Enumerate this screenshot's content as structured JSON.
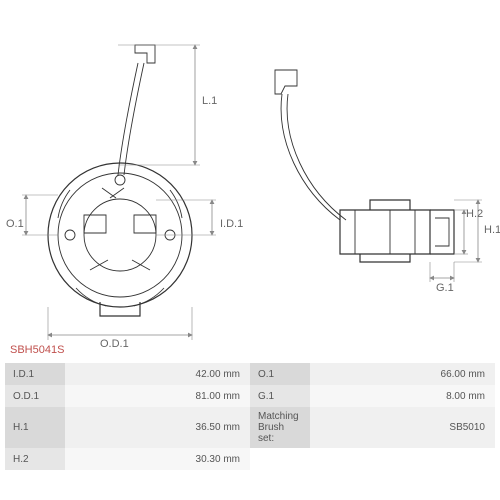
{
  "part_id": "SBH5041S",
  "diagram": {
    "type": "engineering-drawing",
    "labels": {
      "L1": "L.1",
      "O1": "O.1",
      "ID1": "I.D.1",
      "OD1": "O.D.1",
      "H1": "H.1",
      "H2": "H.2",
      "G1": "G.1"
    },
    "stroke_color": "#333333",
    "dim_color": "#888888",
    "bg_color": "#ffffff"
  },
  "spec_table": {
    "rows": [
      {
        "label_l": "I.D.1",
        "value_l": "42.00 mm",
        "label_r": "O.1",
        "value_r": "66.00 mm"
      },
      {
        "label_l": "O.D.1",
        "value_l": "81.00 mm",
        "label_r": "G.1",
        "value_r": "8.00 mm"
      },
      {
        "label_l": "H.1",
        "value_l": "36.50 mm",
        "label_r": "Matching Brush set:",
        "value_r": "SB5010"
      },
      {
        "label_l": "H.2",
        "value_l": "30.30 mm",
        "label_r": "",
        "value_r": ""
      }
    ],
    "label_bg": "#d9d9d9",
    "value_bg": "#f0f0f0"
  }
}
